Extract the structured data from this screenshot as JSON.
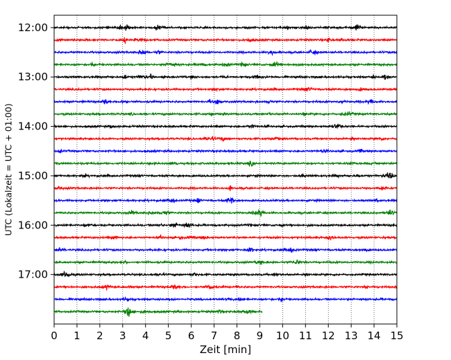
{
  "chart_data": {
    "type": "line",
    "title": "",
    "xlabel": "Zeit  [min]",
    "ylabel": "UTC (Lokalzeit = UTC + 01:00)",
    "xlim": [
      0,
      15
    ],
    "xticks": [
      0,
      1,
      2,
      3,
      4,
      5,
      6,
      7,
      8,
      9,
      10,
      11,
      12,
      13,
      14,
      15
    ],
    "ylim_hours": [
      "11:45",
      "18:00"
    ],
    "ytick_labels": [
      "12:00",
      "13:00",
      "14:00",
      "15:00",
      "16:00",
      "17:00"
    ],
    "grid": "vertical dotted",
    "row_minutes": 15,
    "color_cycle": [
      "#000000",
      "#ff0000",
      "#0000ff",
      "#008000"
    ],
    "rows": [
      {
        "start": "12:00",
        "duration_min": 15
      },
      {
        "start": "12:15",
        "duration_min": 15
      },
      {
        "start": "12:30",
        "duration_min": 15
      },
      {
        "start": "12:45",
        "duration_min": 15
      },
      {
        "start": "13:00",
        "duration_min": 15
      },
      {
        "start": "13:15",
        "duration_min": 15
      },
      {
        "start": "13:30",
        "duration_min": 15
      },
      {
        "start": "13:45",
        "duration_min": 15
      },
      {
        "start": "14:00",
        "duration_min": 15
      },
      {
        "start": "14:15",
        "duration_min": 15
      },
      {
        "start": "14:30",
        "duration_min": 15
      },
      {
        "start": "14:45",
        "duration_min": 15
      },
      {
        "start": "15:00",
        "duration_min": 15
      },
      {
        "start": "15:15",
        "duration_min": 15
      },
      {
        "start": "15:30",
        "duration_min": 15
      },
      {
        "start": "15:45",
        "duration_min": 15
      },
      {
        "start": "16:00",
        "duration_min": 15
      },
      {
        "start": "16:15",
        "duration_min": 15
      },
      {
        "start": "16:30",
        "duration_min": 15
      },
      {
        "start": "16:45",
        "duration_min": 15
      },
      {
        "start": "17:00",
        "duration_min": 15
      },
      {
        "start": "17:15",
        "duration_min": 15
      },
      {
        "start": "17:30",
        "duration_min": 15
      },
      {
        "start": "17:45",
        "duration_min": 9.1
      }
    ]
  }
}
